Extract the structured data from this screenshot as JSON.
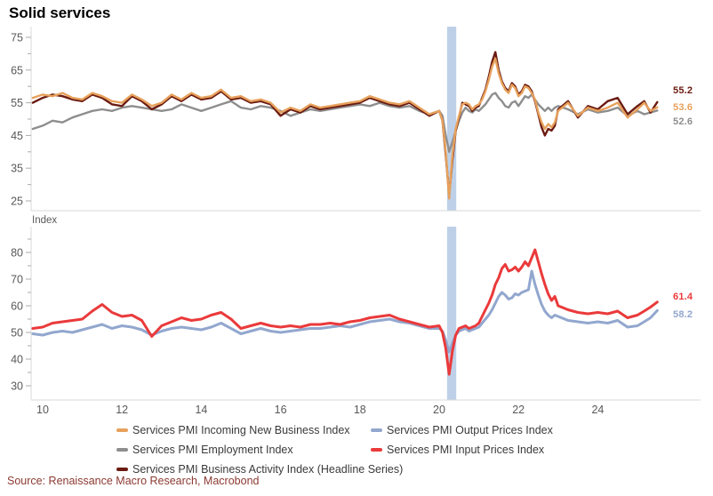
{
  "title": "Solid services",
  "panel_unit_label": "Index",
  "source": "Source: Renaissance Macro Research, Macrobond",
  "colors": {
    "new_business": "#E7A15C",
    "employment": "#8E8E8E",
    "business_activity": "#6B1B11",
    "output_prices": "#92A7CE",
    "input_prices": "#EA3A3B",
    "recession_band": "#BDD0E8",
    "axis_line": "#D9D9D9",
    "tick_mark": "#ABABAB",
    "tick_label": "#595959",
    "source_text": "#8C3A32"
  },
  "legend": {
    "items": [
      {
        "label": "Services PMI Incoming New Business Index",
        "color": "#E7A15C"
      },
      {
        "label": "Services PMI Employment Index",
        "color": "#8E8E8E"
      },
      {
        "label": "Services PMI Business Activity Index (Headline Series)",
        "color": "#6B1B11"
      },
      {
        "label": "Services PMI Output Prices Index",
        "color": "#92A7CE"
      },
      {
        "label": "Services PMI Input Prices Index",
        "color": "#EA3A3B"
      }
    ]
  },
  "chart_data": {
    "type": "line",
    "x_axis_note": "two-digit years, 2010-2025",
    "xticks": [
      10,
      12,
      14,
      16,
      18,
      20,
      22,
      24
    ],
    "recession_band": {
      "from": 20.2,
      "to": 20.43,
      "color": "#BDD0E8"
    },
    "x": [
      9.75,
      10,
      10.25,
      10.5,
      10.75,
      11,
      11.25,
      11.5,
      11.75,
      12,
      12.25,
      12.5,
      12.75,
      13,
      13.25,
      13.5,
      13.75,
      14,
      14.25,
      14.5,
      14.75,
      15,
      15.25,
      15.5,
      15.75,
      16,
      16.25,
      16.5,
      16.75,
      17,
      17.25,
      17.5,
      17.75,
      18,
      18.25,
      18.5,
      18.75,
      19,
      19.25,
      19.5,
      19.75,
      20,
      20.083,
      20.167,
      20.25,
      20.333,
      20.417,
      20.5,
      20.583,
      20.667,
      20.75,
      20.833,
      20.917,
      21,
      21.083,
      21.167,
      21.25,
      21.333,
      21.417,
      21.5,
      21.583,
      21.667,
      21.75,
      21.833,
      21.917,
      22,
      22.083,
      22.167,
      22.25,
      22.333,
      22.417,
      22.5,
      22.583,
      22.667,
      22.75,
      22.833,
      22.917,
      23,
      23.25,
      23.5,
      23.75,
      24,
      24.25,
      24.5,
      24.75,
      25,
      25.17,
      25.33,
      25.5
    ],
    "panels": [
      {
        "name": "activity-indices",
        "ylim": [
          25,
          78
        ],
        "yticks_major": [
          75,
          65,
          55,
          45,
          35,
          25
        ],
        "yticks_minor": [
          70,
          60,
          50,
          40,
          30
        ],
        "series": [
          {
            "name": "Services PMI Employment Index",
            "color": "#8E8E8E",
            "end_label": "52.6",
            "values": [
              47,
              48,
              49.5,
              49,
              50.5,
              51.5,
              52.5,
              53,
              52.5,
              53.5,
              54,
              53.5,
              53,
              52.5,
              53,
              54.5,
              53.5,
              52.5,
              53.5,
              54.5,
              55.5,
              53.5,
              53,
              54,
              53.5,
              52.5,
              51,
              52,
              53,
              52.5,
              53,
              53.5,
              54,
              54.5,
              54,
              55,
              54,
              53.5,
              54,
              52.5,
              51.5,
              52.5,
              51,
              45,
              40,
              43,
              46.5,
              49.5,
              52,
              53.5,
              52.5,
              52,
              53,
              52.5,
              53.5,
              54.5,
              56,
              57.5,
              58,
              56.5,
              55.5,
              54,
              53.5,
              55,
              55.5,
              54,
              55.5,
              57,
              56.5,
              57.5,
              56,
              54.5,
              53.5,
              52.5,
              53.5,
              52.5,
              53.5,
              54,
              53,
              51.5,
              53,
              52,
              52.5,
              53.5,
              51,
              52.5,
              51.5,
              52,
              52.6
            ]
          },
          {
            "name": "Services PMI Business Activity Index (Headline Series)",
            "color": "#6B1B11",
            "end_label": "55.2",
            "values": [
              55,
              56.5,
              57.5,
              57,
              56,
              55.5,
              57.5,
              56.5,
              54.5,
              54,
              57,
              55.5,
              53,
              54.5,
              57,
              55.5,
              57.5,
              56,
              56.5,
              58.5,
              56,
              56.5,
              55,
              55.5,
              54.5,
              51,
              53,
              52,
              54,
              53,
              53.5,
              54,
              54.5,
              55,
              56.5,
              55.5,
              54.5,
              54,
              55,
              53,
              51,
              52.5,
              49.5,
              39,
              26.7,
              37.5,
              46.5,
              50.5,
              55,
              54.5,
              54,
              52.5,
              53.5,
              54,
              56.5,
              59,
              63,
              67.5,
              70.5,
              65,
              61.5,
              59.5,
              58.5,
              61,
              60,
              57.5,
              58.5,
              60.5,
              60,
              58.5,
              55.5,
              51.5,
              47.5,
              45,
              47,
              46.5,
              48,
              53,
              55.5,
              50.5,
              54,
              53,
              55.5,
              56.5,
              51.5,
              54,
              55.5,
              52,
              55.2
            ]
          },
          {
            "name": "Services PMI Incoming New Business Index",
            "color": "#E7A15C",
            "end_label": "53.6",
            "values": [
              56.5,
              57.5,
              57,
              58,
              56.5,
              56,
              58,
              57,
              55.5,
              55,
              57.5,
              56,
              54,
              55,
              57.5,
              56,
              58,
              56.5,
              57,
              59,
              56.5,
              57,
              55.5,
              56,
              55,
              52,
              53.5,
              52.5,
              54.5,
              53.5,
              54,
              54.5,
              55,
              55.5,
              57,
              56,
              55,
              54.5,
              55.5,
              53.5,
              51.5,
              52.5,
              49.5,
              40,
              25.7,
              39,
              47,
              51,
              54.5,
              55,
              54.5,
              53,
              54,
              54.5,
              56,
              58.5,
              62,
              66,
              68.5,
              64,
              61,
              59,
              58,
              60.5,
              59.5,
              57,
              58,
              60,
              59.5,
              58,
              56,
              52,
              49,
              47,
              48.5,
              47.5,
              49,
              52.5,
              55,
              51,
              53.5,
              52.5,
              53.5,
              55,
              50.5,
              53,
              55,
              52.5,
              53.6
            ]
          }
        ]
      },
      {
        "name": "price-indices",
        "ylabel": "Index",
        "ylim": [
          30,
          87
        ],
        "yticks_major": [
          80,
          70,
          60,
          50,
          40,
          30
        ],
        "yticks_minor": [
          85,
          75,
          65,
          55,
          45,
          35
        ],
        "series": [
          {
            "name": "Services PMI Output Prices Index",
            "color": "#92A7CE",
            "end_label": "58.2",
            "values": [
              49.5,
              49,
              50,
              50.5,
              50,
              51,
              52,
              53,
              51.5,
              52.5,
              52,
              51,
              49,
              50.5,
              51.5,
              52,
              51.5,
              51,
              52,
              53.5,
              51.5,
              49.5,
              50.5,
              51.5,
              50.5,
              50,
              50.5,
              51,
              51.5,
              51.5,
              52,
              52.5,
              52,
              53,
              54,
              54.5,
              55,
              54,
              53.5,
              52.5,
              51.5,
              51.5,
              50.5,
              47,
              42.7,
              46,
              49,
              50.5,
              51,
              51.5,
              50.5,
              51,
              51.5,
              52,
              53.5,
              55,
              56.5,
              58.5,
              61,
              63.5,
              65,
              64,
              62.5,
              63,
              64.5,
              64,
              65,
              65.5,
              66,
              73,
              68,
              64,
              60.5,
              58,
              56.5,
              55.5,
              56.5,
              56,
              54.5,
              54,
              53.5,
              54,
              53.5,
              54.5,
              52,
              52.5,
              54,
              55.5,
              58.2
            ]
          },
          {
            "name": "Services PMI Input Prices Index",
            "color": "#EA3A3B",
            "end_label": "61.4",
            "values": [
              51.5,
              52,
              53.5,
              54,
              54.5,
              55,
              58,
              60.5,
              57.5,
              56,
              56.5,
              54.5,
              48.5,
              52.5,
              54,
              55.5,
              54.5,
              55,
              56.5,
              57.5,
              55,
              51.5,
              52.5,
              53.5,
              52.5,
              52,
              52.5,
              52,
              53,
              53,
              53.5,
              53,
              54,
              54.5,
              55.5,
              56,
              56.5,
              55,
              54,
              53,
              52,
              52.5,
              50,
              44,
              34.3,
              43,
              49,
              51.5,
              52,
              52.5,
              51.5,
              52,
              52.5,
              53.5,
              56,
              58.5,
              61,
              64,
              68,
              70.5,
              74,
              75.5,
              73,
              73.5,
              74.5,
              73,
              74.5,
              76.5,
              75,
              78,
              81,
              76.5,
              72,
              68,
              64.5,
              62,
              63.5,
              60,
              58.5,
              57.5,
              57,
              57.5,
              57,
              58,
              55.5,
              56.5,
              58,
              59.5,
              61.4
            ]
          }
        ]
      }
    ]
  }
}
